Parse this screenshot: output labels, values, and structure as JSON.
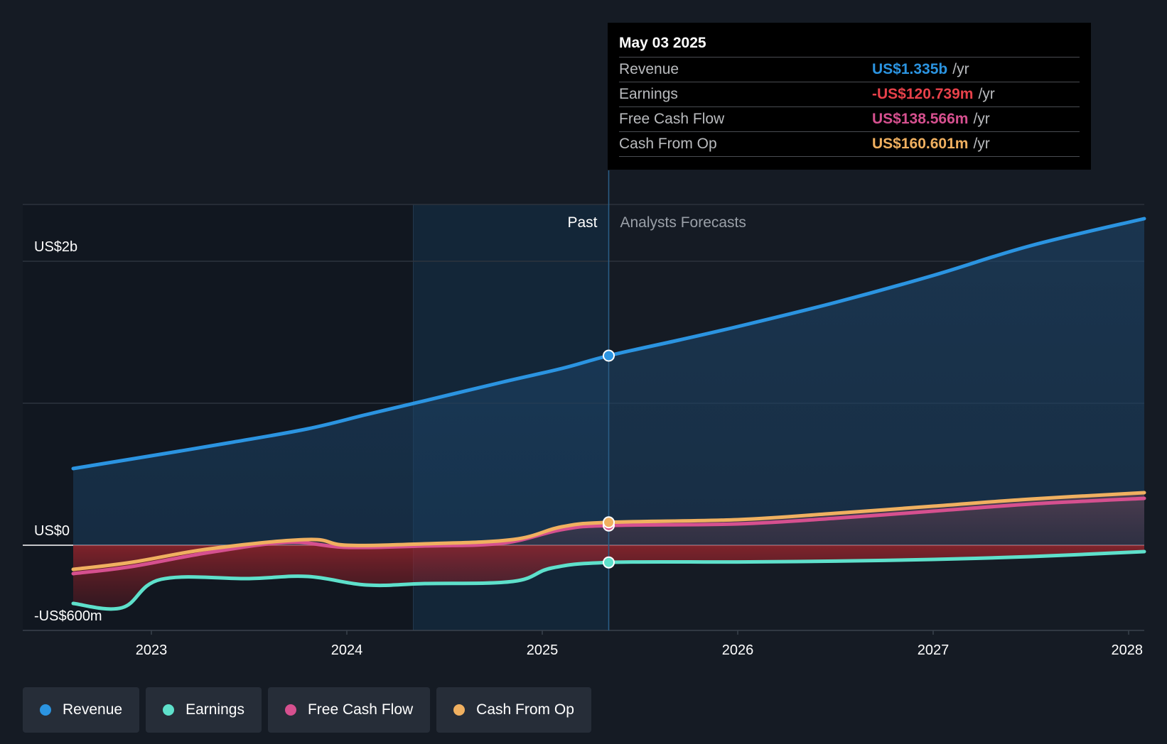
{
  "tooltip": {
    "date": "May 03 2025",
    "rows": [
      {
        "name": "Revenue",
        "value": "US$1.335b",
        "unit": "/yr",
        "color": "#2b94e1"
      },
      {
        "name": "Earnings",
        "value": "-US$120.739m",
        "unit": "/yr",
        "color": "#e8414a"
      },
      {
        "name": "Free Cash Flow",
        "value": "US$138.566m",
        "unit": "/yr",
        "color": "#d6508f"
      },
      {
        "name": "Cash From Op",
        "value": "US$160.601m",
        "unit": "/yr",
        "color": "#f0b060"
      }
    ]
  },
  "legend": [
    {
      "label": "Revenue",
      "color": "#2b94e1"
    },
    {
      "label": "Earnings",
      "color": "#5ee0cb"
    },
    {
      "label": "Free Cash Flow",
      "color": "#d6508f"
    },
    {
      "label": "Cash From Op",
      "color": "#f0b060"
    }
  ],
  "chart_data": {
    "type": "line",
    "y_unit": "US$ millions",
    "ylim": [
      -600,
      2400
    ],
    "y_labels": [
      {
        "value": 2000,
        "text": "US$2b"
      },
      {
        "value": 0,
        "text": "US$0"
      },
      {
        "value": -600,
        "text": "-US$600m"
      }
    ],
    "xlim": [
      2022.65,
      2028.08
    ],
    "x_ticks": [
      {
        "value": 2023,
        "label": "2023"
      },
      {
        "value": 2024,
        "label": "2024"
      },
      {
        "value": 2025,
        "label": "2025"
      },
      {
        "value": 2026,
        "label": "2026"
      },
      {
        "value": 2027,
        "label": "2027"
      },
      {
        "value": 2028,
        "label": "2028"
      }
    ],
    "past_label": "Past",
    "forecast_label": "Analysts Forecasts",
    "past_shade_start": 2024.34,
    "current_x": 2025.34,
    "grid": true,
    "series": [
      {
        "name": "Revenue",
        "color": "#2b94e1",
        "points": [
          [
            2022.6,
            540
          ],
          [
            2023.0,
            630
          ],
          [
            2023.4,
            722
          ],
          [
            2023.8,
            820
          ],
          [
            2024.1,
            920
          ],
          [
            2024.4,
            1018
          ],
          [
            2024.8,
            1150
          ],
          [
            2025.1,
            1245
          ],
          [
            2025.34,
            1335
          ],
          [
            2025.7,
            1445
          ],
          [
            2026.0,
            1540
          ],
          [
            2026.5,
            1710
          ],
          [
            2027.0,
            1900
          ],
          [
            2027.5,
            2110
          ],
          [
            2028.08,
            2300
          ]
        ]
      },
      {
        "name": "Earnings",
        "color": "#5ee0cb",
        "points": [
          [
            2022.6,
            -410
          ],
          [
            2022.85,
            -440
          ],
          [
            2023.05,
            -240
          ],
          [
            2023.5,
            -235
          ],
          [
            2023.8,
            -220
          ],
          [
            2024.1,
            -280
          ],
          [
            2024.4,
            -270
          ],
          [
            2024.85,
            -255
          ],
          [
            2025.05,
            -160
          ],
          [
            2025.34,
            -121
          ],
          [
            2026.0,
            -118
          ],
          [
            2026.5,
            -112
          ],
          [
            2027.0,
            -100
          ],
          [
            2027.5,
            -80
          ],
          [
            2028.08,
            -45
          ]
        ]
      },
      {
        "name": "Free Cash Flow",
        "color": "#d6508f",
        "points": [
          [
            2022.6,
            -200
          ],
          [
            2022.9,
            -150
          ],
          [
            2023.3,
            -50
          ],
          [
            2023.7,
            20
          ],
          [
            2024.0,
            -15
          ],
          [
            2024.4,
            -5
          ],
          [
            2024.8,
            15
          ],
          [
            2025.1,
            110
          ],
          [
            2025.34,
            139
          ],
          [
            2026.0,
            150
          ],
          [
            2026.5,
            190
          ],
          [
            2027.0,
            240
          ],
          [
            2027.5,
            290
          ],
          [
            2028.08,
            330
          ]
        ]
      },
      {
        "name": "Cash From Op",
        "color": "#f0b060",
        "points": [
          [
            2022.6,
            -170
          ],
          [
            2022.9,
            -120
          ],
          [
            2023.3,
            -25
          ],
          [
            2023.8,
            40
          ],
          [
            2024.0,
            0
          ],
          [
            2024.4,
            10
          ],
          [
            2024.85,
            40
          ],
          [
            2025.1,
            130
          ],
          [
            2025.34,
            161
          ],
          [
            2026.0,
            180
          ],
          [
            2026.5,
            225
          ],
          [
            2027.0,
            275
          ],
          [
            2027.5,
            325
          ],
          [
            2028.08,
            370
          ]
        ]
      }
    ]
  }
}
